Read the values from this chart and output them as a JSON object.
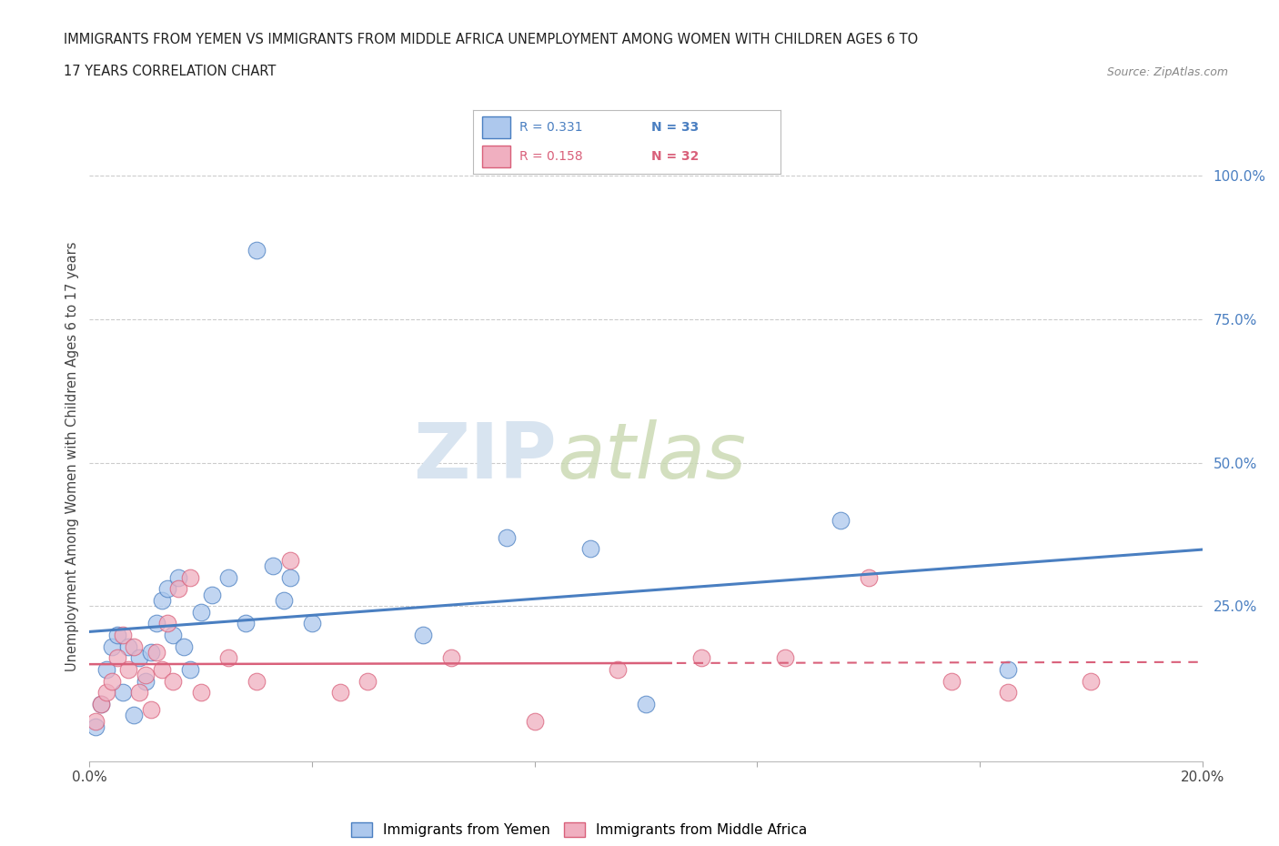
{
  "title_line1": "IMMIGRANTS FROM YEMEN VS IMMIGRANTS FROM MIDDLE AFRICA UNEMPLOYMENT AMONG WOMEN WITH CHILDREN AGES 6 TO",
  "title_line2": "17 YEARS CORRELATION CHART",
  "source": "Source: ZipAtlas.com",
  "ylabel": "Unemployment Among Women with Children Ages 6 to 17 years",
  "xlim": [
    0.0,
    0.2
  ],
  "ylim": [
    -0.02,
    1.04
  ],
  "xticks": [
    0.0,
    0.04,
    0.08,
    0.12,
    0.16,
    0.2
  ],
  "xtick_labels": [
    "0.0%",
    "",
    "",
    "",
    "",
    "20.0%"
  ],
  "ytick_right_labels": [
    "100.0%",
    "75.0%",
    "50.0%",
    "25.0%",
    ""
  ],
  "ytick_right_values": [
    1.0,
    0.75,
    0.5,
    0.25,
    0.0
  ],
  "r_yemen": 0.331,
  "n_yemen": 33,
  "r_africa": 0.158,
  "n_africa": 32,
  "legend_label1": "Immigrants from Yemen",
  "legend_label2": "Immigrants from Middle Africa",
  "color_yemen": "#adc8ed",
  "color_africa": "#f0afc0",
  "line_color_yemen": "#4a7fc1",
  "line_color_africa": "#d9607a",
  "watermark_zip": "ZIP",
  "watermark_atlas": "atlas",
  "background_color": "#ffffff",
  "yemen_x": [
    0.001,
    0.002,
    0.003,
    0.004,
    0.005,
    0.006,
    0.007,
    0.008,
    0.009,
    0.01,
    0.011,
    0.012,
    0.013,
    0.014,
    0.015,
    0.016,
    0.017,
    0.018,
    0.02,
    0.022,
    0.025,
    0.028,
    0.03,
    0.033,
    0.036,
    0.04,
    0.035,
    0.06,
    0.075,
    0.09,
    0.1,
    0.135,
    0.165
  ],
  "yemen_y": [
    0.04,
    0.08,
    0.14,
    0.18,
    0.2,
    0.1,
    0.18,
    0.06,
    0.16,
    0.12,
    0.17,
    0.22,
    0.26,
    0.28,
    0.2,
    0.3,
    0.18,
    0.14,
    0.24,
    0.27,
    0.3,
    0.22,
    0.87,
    0.32,
    0.3,
    0.22,
    0.26,
    0.2,
    0.37,
    0.35,
    0.08,
    0.4,
    0.14
  ],
  "africa_x": [
    0.001,
    0.002,
    0.003,
    0.004,
    0.005,
    0.006,
    0.007,
    0.008,
    0.009,
    0.01,
    0.011,
    0.012,
    0.013,
    0.014,
    0.015,
    0.016,
    0.018,
    0.02,
    0.025,
    0.03,
    0.036,
    0.045,
    0.05,
    0.065,
    0.08,
    0.095,
    0.11,
    0.125,
    0.14,
    0.155,
    0.165,
    0.18
  ],
  "africa_y": [
    0.05,
    0.08,
    0.1,
    0.12,
    0.16,
    0.2,
    0.14,
    0.18,
    0.1,
    0.13,
    0.07,
    0.17,
    0.14,
    0.22,
    0.12,
    0.28,
    0.3,
    0.1,
    0.16,
    0.12,
    0.33,
    0.1,
    0.12,
    0.16,
    0.05,
    0.14,
    0.16,
    0.16,
    0.3,
    0.12,
    0.1,
    0.12
  ]
}
